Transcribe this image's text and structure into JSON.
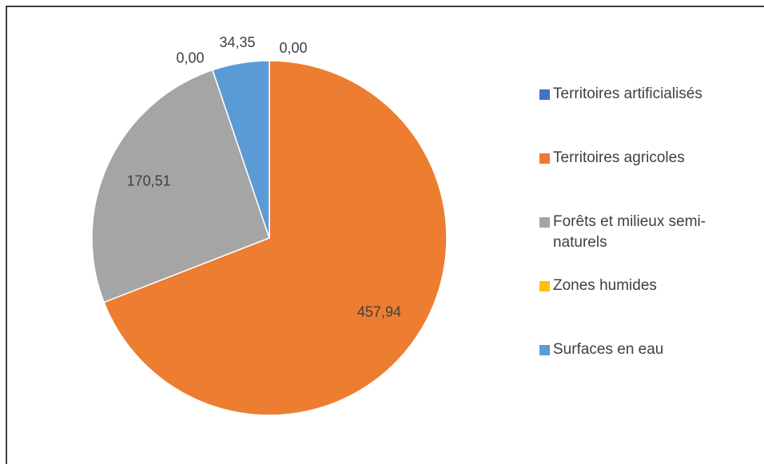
{
  "chart_data": {
    "type": "pie",
    "categories": [
      "Territoires artificialisés",
      "Territoires agricoles",
      "Forêts et milieux semi-naturels",
      "Zones humides",
      "Surfaces en eau"
    ],
    "values": [
      0,
      457.94,
      170.51,
      0,
      34.35
    ],
    "value_labels": [
      "0,00",
      "457,94",
      "170,51",
      "0,00",
      "34,35"
    ],
    "colors": [
      "#4472c4",
      "#ed7d31",
      "#a5a5a5",
      "#ffc000",
      "#5b9bd5"
    ],
    "legend": "right"
  }
}
